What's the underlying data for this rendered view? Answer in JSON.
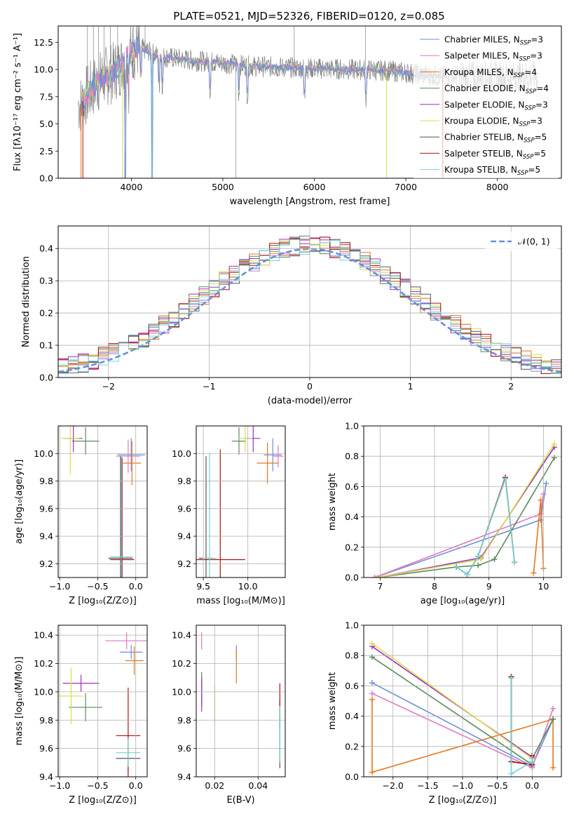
{
  "figure_title": "PLATE=0521, MJD=52326, FIBERID=0120, z=0.085",
  "colors": {
    "chabrier_miles": "#6a8fd8",
    "salpeter_miles": "#e377c2",
    "kroupa_miles": "#e8761a",
    "chabrier_elodie": "#5a8a5e",
    "salpeter_elodie": "#9b30c0",
    "kroupa_elodie": "#dcdc4a",
    "chabrier_stelib": "#555555",
    "salpeter_stelib": "#b01010",
    "kroupa_stelib": "#6fd6d6",
    "data": "#808080",
    "normal": "#6a8fd8"
  },
  "chart_data": [
    {
      "type": "line",
      "panel": "spectrum",
      "title": "PLATE=0521, MJD=52326, FIBERID=0120, z=0.085",
      "xlabel": "wavelength [Angstrom, rest frame]",
      "ylabel": "Flux [fλ10⁻¹⁷ erg cm⁻² s⁻¹ A⁻¹]",
      "xlim": [
        3200,
        8700
      ],
      "ylim": [
        0,
        14
      ],
      "xticks": [
        "4000",
        "5000",
        "6000",
        "7000",
        "8000"
      ],
      "yticks": [
        "0.0",
        "2.5",
        "5.0",
        "7.5",
        "10.0",
        "12.5"
      ],
      "legend_position": "top-right",
      "legend": [
        {
          "label": "Chabrier MILES, N",
          "sub": "SSP",
          "suffix": "=3",
          "key": "chabrier_miles"
        },
        {
          "label": "Salpeter MILES, N",
          "sub": "SSP",
          "suffix": "=3",
          "key": "salpeter_miles"
        },
        {
          "label": "Kroupa MILES, N",
          "sub": "SSP",
          "suffix": "=4",
          "key": "kroupa_miles"
        },
        {
          "label": "Chabrier ELODIE, N",
          "sub": "SSP",
          "suffix": "=4",
          "key": "chabrier_elodie"
        },
        {
          "label": "Salpeter ELODIE, N",
          "sub": "SSP",
          "suffix": "=3",
          "key": "salpeter_elodie"
        },
        {
          "label": "Kroupa ELODIE, N",
          "sub": "SSP",
          "suffix": "=3",
          "key": "kroupa_elodie"
        },
        {
          "label": "Chabrier STELIB, N",
          "sub": "SSP",
          "suffix": "=5",
          "key": "chabrier_stelib"
        },
        {
          "label": "Salpeter STELIB, N",
          "sub": "SSP",
          "suffix": "=5",
          "key": "salpeter_stelib"
        },
        {
          "label": "Kroupa STELIB, N",
          "sub": "SSP",
          "suffix": "=5",
          "key": "kroupa_stelib"
        }
      ],
      "model_continuum": {
        "x": [
          3450,
          3500,
          3600,
          3700,
          3800,
          3900,
          4000,
          4100,
          4200,
          4300,
          4500,
          4700,
          5000,
          5300,
          5600,
          6000,
          6400,
          6800,
          7000,
          7200,
          7400
        ],
        "y": [
          6.8,
          7.5,
          8.5,
          9.3,
          9.7,
          10.5,
          11.6,
          12.0,
          11.6,
          11.2,
          11.0,
          10.8,
          10.6,
          10.3,
          10.2,
          10.1,
          10.0,
          9.9,
          9.7,
          9.5,
          9.3
        ]
      },
      "data_spectrum": {
        "x": [
          3420,
          8440
        ],
        "y_level": 10.2,
        "noise_amplitude": 1.8
      }
    },
    {
      "type": "line",
      "panel": "residuals",
      "xlabel": "(data-model)/error",
      "ylabel": "Normed distribution",
      "xlim": [
        -2.5,
        2.5
      ],
      "ylim": [
        0,
        0.47
      ],
      "xticks": [
        "−2",
        "−1",
        "0",
        "1",
        "2"
      ],
      "yticks": [
        "0.0",
        "0.1",
        "0.2",
        "0.3",
        "0.4"
      ],
      "legend_position": "top-right",
      "normal_label": "𝒩(0, 1)",
      "bin_width": 0.1,
      "bins_start": -2.5
    },
    {
      "type": "scatter",
      "panel": "age-vs-Z",
      "xlabel": "Z [log₁₀(Z/Z⊙)]",
      "ylabel": "age  [log₁₀(age/yr)]",
      "xlim": [
        -1.02,
        0.15
      ],
      "ylim": [
        9.1,
        10.2
      ],
      "xticks": [
        "−1.0",
        "−0.5",
        "0.0"
      ],
      "yticks": [
        "9.2",
        "9.4",
        "9.6",
        "9.8",
        "10.0"
      ],
      "points": [
        {
          "key": "chabrier_miles",
          "x": -0.06,
          "y": 9.99,
          "xerr": 0.18,
          "yerr": 0.12
        },
        {
          "key": "salpeter_miles",
          "x": -0.1,
          "y": 9.98,
          "xerr": 0.16,
          "yerr": 0.12
        },
        {
          "key": "kroupa_miles",
          "x": -0.05,
          "y": 9.93,
          "xerr": 0.12,
          "yerr": 0.16
        },
        {
          "key": "chabrier_elodie",
          "x": -0.66,
          "y": 10.09,
          "xerr": 0.18,
          "yerr": 0.1
        },
        {
          "key": "salpeter_elodie",
          "x": -0.82,
          "y": 10.11,
          "xerr": 0.12,
          "yerr": 0.1
        },
        {
          "key": "kroupa_elodie",
          "x": -0.86,
          "y": 10.11,
          "xerr": 0.12,
          "yerr": 0.26
        },
        {
          "key": "chabrier_stelib",
          "x": -0.2,
          "y": 9.24,
          "xerr": 0.16,
          "yerr": 0.74
        },
        {
          "key": "salpeter_stelib",
          "x": -0.18,
          "y": 9.23,
          "xerr": 0.16,
          "yerr": 0.74
        },
        {
          "key": "kroupa_stelib",
          "x": -0.19,
          "y": 9.25,
          "xerr": 0.15,
          "yerr": 0.74
        }
      ]
    },
    {
      "type": "scatter",
      "panel": "age-vs-mass",
      "xlabel": "mass [log₁₀(M/M⊙)]",
      "ylabel": "",
      "xlim": [
        9.42,
        10.42
      ],
      "ylim": [
        9.1,
        10.2
      ],
      "xticks": [
        "9.5",
        "10.0"
      ],
      "yticks": [
        "9.2",
        "9.4",
        "9.6",
        "9.8",
        "10.0"
      ],
      "points": [
        {
          "key": "chabrier_miles",
          "x": 10.28,
          "y": 9.99,
          "xerr": 0.1,
          "yerr": 0.12
        },
        {
          "key": "salpeter_miles",
          "x": 10.34,
          "y": 9.98,
          "xerr": 0.06,
          "yerr": 0.08
        },
        {
          "key": "kroupa_miles",
          "x": 10.22,
          "y": 9.93,
          "xerr": 0.12,
          "yerr": 0.15
        },
        {
          "key": "chabrier_elodie",
          "x": 9.9,
          "y": 10.09,
          "xerr": 0.08,
          "yerr": 0.1
        },
        {
          "key": "salpeter_elodie",
          "x": 10.06,
          "y": 10.11,
          "xerr": 0.08,
          "yerr": 0.1
        },
        {
          "key": "kroupa_elodie",
          "x": 9.97,
          "y": 10.11,
          "xerr": 0.08,
          "yerr": 0.1
        },
        {
          "key": "chabrier_stelib",
          "x": 9.53,
          "y": 9.24,
          "xerr": 0.08,
          "yerr": 0.74
        },
        {
          "key": "salpeter_stelib",
          "x": 9.69,
          "y": 9.23,
          "xerr": 0.28,
          "yerr": 0.8
        },
        {
          "key": "kroupa_stelib",
          "x": 9.57,
          "y": 9.24,
          "xerr": 0.08,
          "yerr": 0.76
        }
      ]
    },
    {
      "type": "line",
      "panel": "mass-weight-vs-age",
      "xlabel": "age  [log₁₀(age/yr)]",
      "ylabel": "mass weight",
      "xlim": [
        6.7,
        10.33
      ],
      "ylim": [
        0,
        1
      ],
      "xticks": [
        "7",
        "8",
        "9",
        "10"
      ],
      "yticks": [
        "0.0",
        "0.2",
        "0.4",
        "0.6",
        "0.8",
        "1.0"
      ],
      "series": [
        {
          "key": "chabrier_miles",
          "x": [
            6.9,
            9.95,
            10.05
          ],
          "y": [
            0.0,
            0.38,
            0.62
          ]
        },
        {
          "key": "salpeter_miles",
          "x": [
            6.9,
            9.95,
            10.0
          ],
          "y": [
            0.0,
            0.42,
            0.55
          ]
        },
        {
          "key": "kroupa_miles",
          "x": [
            9.82,
            9.95,
            10.0
          ],
          "y": [
            0.03,
            0.51,
            0.06
          ]
        },
        {
          "key": "chabrier_elodie",
          "x": [
            6.95,
            8.4,
            8.8,
            9.1,
            10.2
          ],
          "y": [
            0.0,
            0.07,
            0.08,
            0.12,
            0.79
          ]
        },
        {
          "key": "salpeter_elodie",
          "x": [
            6.95,
            8.85,
            10.2
          ],
          "y": [
            0.0,
            0.13,
            0.86
          ]
        },
        {
          "key": "kroupa_elodie",
          "x": [
            6.95,
            8.85,
            10.2
          ],
          "y": [
            0.0,
            0.12,
            0.88
          ]
        },
        {
          "key": "chabrier_stelib",
          "x": [
            8.4,
            8.6,
            8.8,
            9.3,
            9.47
          ],
          "y": [
            0.07,
            0.02,
            0.14,
            0.66,
            0.1
          ]
        },
        {
          "key": "salpeter_stelib",
          "x": [
            8.4,
            8.6,
            8.8,
            9.3,
            9.47
          ],
          "y": [
            0.07,
            0.02,
            0.14,
            0.66,
            0.1
          ]
        },
        {
          "key": "kroupa_stelib",
          "x": [
            8.4,
            8.6,
            8.8,
            9.3,
            9.47
          ],
          "y": [
            0.07,
            0.02,
            0.14,
            0.65,
            0.1
          ]
        }
      ]
    },
    {
      "type": "scatter",
      "panel": "mass-vs-Z",
      "xlabel": "Z [log₁₀(Z/Z⊙)]",
      "ylabel": "mass [log₁₀(M/M⊙)]",
      "xlim": [
        -1.02,
        0.15
      ],
      "ylim": [
        9.4,
        10.47
      ],
      "xticks": [
        "−1.0",
        "−0.5",
        "0.0"
      ],
      "yticks": [
        "9.4",
        "9.6",
        "9.8",
        "10.0",
        "10.2",
        "10.4"
      ],
      "points": [
        {
          "key": "chabrier_miles",
          "x": -0.06,
          "y": 10.28,
          "xerr": 0.15,
          "yerr": 0.05
        },
        {
          "key": "salpeter_miles",
          "x": -0.12,
          "y": 10.36,
          "xerr": 0.28,
          "yerr": 0.06
        },
        {
          "key": "kroupa_miles",
          "x": -0.02,
          "y": 10.22,
          "xerr": 0.12,
          "yerr": 0.1
        },
        {
          "key": "chabrier_elodie",
          "x": -0.66,
          "y": 9.89,
          "xerr": 0.22,
          "yerr": 0.1
        },
        {
          "key": "salpeter_elodie",
          "x": -0.72,
          "y": 10.06,
          "xerr": 0.24,
          "yerr": 0.06
        },
        {
          "key": "kroupa_elodie",
          "x": -0.85,
          "y": 9.97,
          "xerr": 0.16,
          "yerr": 0.2
        },
        {
          "key": "chabrier_stelib",
          "x": -0.1,
          "y": 9.53,
          "xerr": 0.16,
          "yerr": 0.1
        },
        {
          "key": "salpeter_stelib",
          "x": -0.1,
          "y": 9.69,
          "xerr": 0.16,
          "yerr": 0.34
        },
        {
          "key": "kroupa_stelib",
          "x": -0.1,
          "y": 9.57,
          "xerr": 0.16,
          "yerr": 0.1
        }
      ]
    },
    {
      "type": "scatter",
      "panel": "mass-vs-EBV",
      "xlabel": "E(B-V)",
      "ylabel": "",
      "xlim": [
        0.0115,
        0.0525
      ],
      "ylim": [
        9.4,
        10.47
      ],
      "xticks": [
        "0.02",
        "0.04"
      ],
      "yticks": [
        "9.4",
        "9.6",
        "9.8",
        "10.0",
        "10.2",
        "10.4"
      ],
      "points": [
        {
          "key": "chabrier_miles",
          "x": 0.03,
          "y": 10.28,
          "xerr": 0,
          "yerr": 0.05
        },
        {
          "key": "salpeter_miles",
          "x": 0.014,
          "y": 10.36,
          "xerr": 0,
          "yerr": 0.06
        },
        {
          "key": "kroupa_miles",
          "x": 0.03,
          "y": 10.18,
          "xerr": 0,
          "yerr": 0.12
        },
        {
          "key": "chabrier_elodie",
          "x": 0.014,
          "y": 10.02,
          "xerr": 0,
          "yerr": 0.12
        },
        {
          "key": "salpeter_elodie",
          "x": 0.014,
          "y": 9.98,
          "xerr": 0,
          "yerr": 0.12
        },
        {
          "key": "kroupa_elodie",
          "x": 0.02,
          "y": 9.9,
          "xerr": 0,
          "yerr": 0.14
        },
        {
          "key": "chabrier_stelib",
          "x": 0.05,
          "y": 9.7,
          "xerr": 0,
          "yerr": 0.24
        },
        {
          "key": "salpeter_stelib",
          "x": 0.05,
          "y": 9.9,
          "xerr": 0,
          "yerr": 0.16
        },
        {
          "key": "kroupa_stelib",
          "x": 0.05,
          "y": 9.7,
          "xerr": 0,
          "yerr": 0.2
        }
      ]
    },
    {
      "type": "line",
      "panel": "mass-weight-vs-Z",
      "xlabel": "Z [log₁₀(Z/Z⊙)]",
      "ylabel": "mass weight",
      "xlim": [
        -2.42,
        0.42
      ],
      "ylim": [
        0,
        1
      ],
      "xticks": [
        "−2.0",
        "−1.5",
        "−1.0",
        "−0.5",
        "0.0"
      ],
      "yticks": [
        "0.0",
        "0.2",
        "0.4",
        "0.6",
        "0.8",
        "1.0"
      ],
      "series": [
        {
          "key": "chabrier_miles",
          "x": [
            -2.3,
            0.0,
            0.3
          ],
          "y": [
            0.62,
            0.07,
            0.38
          ]
        },
        {
          "key": "salpeter_miles",
          "x": [
            -2.3,
            0.0,
            0.3
          ],
          "y": [
            0.55,
            0.06,
            0.45
          ]
        },
        {
          "key": "kroupa_miles",
          "x": [
            -2.3,
            -2.3,
            0.3,
            0.3
          ],
          "y": [
            0.51,
            0.03,
            0.38,
            0.06
          ]
        },
        {
          "key": "chabrier_elodie",
          "x": [
            -2.3,
            0.0,
            0.0,
            0.3
          ],
          "y": [
            0.79,
            0.08,
            0.12,
            0.38
          ]
        },
        {
          "key": "salpeter_elodie",
          "x": [
            -2.3,
            0.0
          ],
          "y": [
            0.86,
            0.13
          ]
        },
        {
          "key": "kroupa_elodie",
          "x": [
            -2.3,
            0.0
          ],
          "y": [
            0.88,
            0.12
          ]
        },
        {
          "key": "chabrier_stelib",
          "x": [
            -0.3,
            -0.3,
            0.0,
            0.0
          ],
          "y": [
            0.66,
            0.1,
            0.08,
            0.14
          ]
        },
        {
          "key": "salpeter_stelib",
          "x": [
            -0.3,
            -0.3,
            0.0,
            0.0
          ],
          "y": [
            0.66,
            0.1,
            0.08,
            0.14
          ]
        },
        {
          "key": "kroupa_stelib",
          "x": [
            -0.3,
            -0.3,
            0.0,
            0.0
          ],
          "y": [
            0.65,
            0.02,
            0.1,
            0.12
          ]
        }
      ]
    }
  ]
}
